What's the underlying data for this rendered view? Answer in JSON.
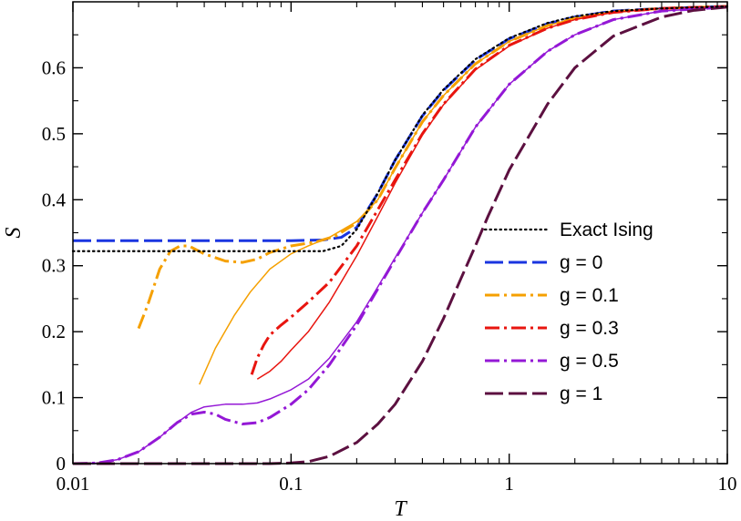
{
  "chart_data": {
    "type": "line",
    "xscale": "log",
    "xlabel": "T",
    "ylabel": "S",
    "xlim": [
      0.01,
      10
    ],
    "ylim": [
      0,
      0.7
    ],
    "xticks": [
      {
        "value": 0.01,
        "label": "0.01"
      },
      {
        "value": 0.1,
        "label": "0.1"
      },
      {
        "value": 1,
        "label": "1"
      },
      {
        "value": 10,
        "label": "10"
      }
    ],
    "yticks": [
      {
        "value": 0,
        "label": "0"
      },
      {
        "value": 0.1,
        "label": "0.1"
      },
      {
        "value": 0.2,
        "label": "0.2"
      },
      {
        "value": 0.3,
        "label": "0.3"
      },
      {
        "value": 0.4,
        "label": "0.4"
      },
      {
        "value": 0.5,
        "label": "0.5"
      },
      {
        "value": 0.6,
        "label": "0.6"
      }
    ],
    "legend_position": "center-right",
    "series": [
      {
        "name": "Exact Ising",
        "color": "#000000",
        "style": "dotted",
        "legend": true,
        "points": [
          [
            0.01,
            0.322
          ],
          [
            0.14,
            0.322
          ],
          [
            0.17,
            0.33
          ],
          [
            0.2,
            0.355
          ],
          [
            0.25,
            0.41
          ],
          [
            0.3,
            0.46
          ],
          [
            0.4,
            0.528
          ],
          [
            0.5,
            0.567
          ],
          [
            0.7,
            0.613
          ],
          [
            1,
            0.645
          ],
          [
            1.5,
            0.668
          ],
          [
            2,
            0.678
          ],
          [
            3,
            0.686
          ],
          [
            5,
            0.69
          ],
          [
            10,
            0.693
          ]
        ]
      },
      {
        "name": "g = 0",
        "color": "#1a35e0",
        "style": "long-dash",
        "legend": true,
        "points": [
          [
            0.01,
            0.338
          ],
          [
            0.1,
            0.338
          ],
          [
            0.14,
            0.339
          ],
          [
            0.17,
            0.343
          ],
          [
            0.2,
            0.358
          ],
          [
            0.25,
            0.41
          ],
          [
            0.3,
            0.46
          ],
          [
            0.4,
            0.527
          ],
          [
            0.5,
            0.566
          ],
          [
            0.7,
            0.612
          ],
          [
            1,
            0.644
          ],
          [
            1.5,
            0.667
          ],
          [
            2,
            0.677
          ],
          [
            3,
            0.686
          ],
          [
            5,
            0.69
          ],
          [
            10,
            0.693
          ]
        ]
      },
      {
        "name": "g = 0.1",
        "color": "#f5a000",
        "style": "dash-dot",
        "legend": true,
        "points": [
          [
            0.02,
            0.205
          ],
          [
            0.022,
            0.24
          ],
          [
            0.025,
            0.295
          ],
          [
            0.028,
            0.322
          ],
          [
            0.031,
            0.33
          ],
          [
            0.034,
            0.33
          ],
          [
            0.04,
            0.318
          ],
          [
            0.05,
            0.307
          ],
          [
            0.06,
            0.305
          ],
          [
            0.07,
            0.31
          ],
          [
            0.08,
            0.32
          ],
          [
            0.1,
            0.33
          ],
          [
            0.13,
            0.336
          ],
          [
            0.16,
            0.345
          ],
          [
            0.2,
            0.365
          ],
          [
            0.25,
            0.4
          ],
          [
            0.3,
            0.448
          ],
          [
            0.4,
            0.518
          ],
          [
            0.5,
            0.558
          ],
          [
            0.7,
            0.606
          ],
          [
            1,
            0.64
          ],
          [
            1.5,
            0.664
          ],
          [
            2,
            0.675
          ],
          [
            3,
            0.685
          ],
          [
            5,
            0.69
          ],
          [
            10,
            0.693
          ]
        ]
      },
      {
        "name": "g = 0.1 (thin)",
        "color": "#f5a000",
        "style": "solid",
        "legend": false,
        "points": [
          [
            0.038,
            0.12
          ],
          [
            0.045,
            0.175
          ],
          [
            0.055,
            0.225
          ],
          [
            0.065,
            0.26
          ],
          [
            0.08,
            0.295
          ],
          [
            0.1,
            0.318
          ],
          [
            0.12,
            0.33
          ],
          [
            0.15,
            0.343
          ],
          [
            0.2,
            0.367
          ],
          [
            0.25,
            0.4
          ],
          [
            0.3,
            0.448
          ],
          [
            0.4,
            0.518
          ],
          [
            0.5,
            0.558
          ],
          [
            0.7,
            0.606
          ],
          [
            1,
            0.64
          ],
          [
            1.5,
            0.664
          ],
          [
            2,
            0.675
          ],
          [
            3,
            0.685
          ],
          [
            5,
            0.69
          ],
          [
            10,
            0.693
          ]
        ]
      },
      {
        "name": "g = 0.3",
        "color": "#e8150f",
        "style": "dash-dot",
        "legend": true,
        "points": [
          [
            0.066,
            0.135
          ],
          [
            0.07,
            0.16
          ],
          [
            0.075,
            0.18
          ],
          [
            0.08,
            0.195
          ],
          [
            0.09,
            0.21
          ],
          [
            0.1,
            0.222
          ],
          [
            0.12,
            0.245
          ],
          [
            0.15,
            0.275
          ],
          [
            0.2,
            0.33
          ],
          [
            0.25,
            0.385
          ],
          [
            0.3,
            0.43
          ],
          [
            0.4,
            0.5
          ],
          [
            0.5,
            0.545
          ],
          [
            0.7,
            0.598
          ],
          [
            1,
            0.634
          ],
          [
            1.5,
            0.66
          ],
          [
            2,
            0.673
          ],
          [
            3,
            0.684
          ],
          [
            5,
            0.69
          ],
          [
            10,
            0.693
          ]
        ]
      },
      {
        "name": "g = 0.3 (thin)",
        "color": "#e8150f",
        "style": "solid",
        "legend": false,
        "points": [
          [
            0.07,
            0.128
          ],
          [
            0.08,
            0.14
          ],
          [
            0.09,
            0.155
          ],
          [
            0.1,
            0.172
          ],
          [
            0.12,
            0.2
          ],
          [
            0.15,
            0.245
          ],
          [
            0.2,
            0.315
          ],
          [
            0.25,
            0.375
          ],
          [
            0.3,
            0.425
          ],
          [
            0.4,
            0.498
          ],
          [
            0.5,
            0.544
          ],
          [
            0.7,
            0.597
          ],
          [
            1,
            0.633
          ],
          [
            1.5,
            0.66
          ],
          [
            2,
            0.673
          ],
          [
            3,
            0.684
          ],
          [
            5,
            0.69
          ],
          [
            10,
            0.693
          ]
        ]
      },
      {
        "name": "g = 0.5",
        "color": "#9418d6",
        "style": "dash-dot",
        "legend": true,
        "points": [
          [
            0.01,
            0
          ],
          [
            0.013,
            0.001
          ],
          [
            0.016,
            0.006
          ],
          [
            0.02,
            0.018
          ],
          [
            0.025,
            0.04
          ],
          [
            0.03,
            0.062
          ],
          [
            0.035,
            0.075
          ],
          [
            0.04,
            0.078
          ],
          [
            0.045,
            0.075
          ],
          [
            0.05,
            0.067
          ],
          [
            0.06,
            0.06
          ],
          [
            0.07,
            0.062
          ],
          [
            0.08,
            0.07
          ],
          [
            0.1,
            0.09
          ],
          [
            0.12,
            0.112
          ],
          [
            0.15,
            0.15
          ],
          [
            0.2,
            0.21
          ],
          [
            0.25,
            0.265
          ],
          [
            0.3,
            0.31
          ],
          [
            0.4,
            0.38
          ],
          [
            0.5,
            0.43
          ],
          [
            0.7,
            0.51
          ],
          [
            1,
            0.575
          ],
          [
            1.5,
            0.625
          ],
          [
            2,
            0.65
          ],
          [
            3,
            0.673
          ],
          [
            5,
            0.686
          ],
          [
            10,
            0.692
          ]
        ]
      },
      {
        "name": "g = 0.5 (thin)",
        "color": "#9418d6",
        "style": "solid",
        "legend": false,
        "points": [
          [
            0.01,
            0
          ],
          [
            0.013,
            0.001
          ],
          [
            0.016,
            0.006
          ],
          [
            0.02,
            0.018
          ],
          [
            0.025,
            0.04
          ],
          [
            0.03,
            0.062
          ],
          [
            0.035,
            0.078
          ],
          [
            0.04,
            0.086
          ],
          [
            0.05,
            0.09
          ],
          [
            0.06,
            0.09
          ],
          [
            0.07,
            0.092
          ],
          [
            0.08,
            0.098
          ],
          [
            0.1,
            0.112
          ],
          [
            0.12,
            0.128
          ],
          [
            0.15,
            0.16
          ],
          [
            0.2,
            0.215
          ],
          [
            0.25,
            0.268
          ],
          [
            0.3,
            0.312
          ],
          [
            0.4,
            0.38
          ],
          [
            0.5,
            0.43
          ],
          [
            0.7,
            0.51
          ],
          [
            1,
            0.575
          ],
          [
            1.5,
            0.625
          ],
          [
            2,
            0.65
          ],
          [
            3,
            0.673
          ],
          [
            5,
            0.686
          ],
          [
            10,
            0.692
          ]
        ]
      },
      {
        "name": "g = 1",
        "color": "#5c1040",
        "style": "long-dash",
        "legend": true,
        "points": [
          [
            0.01,
            0
          ],
          [
            0.08,
            0
          ],
          [
            0.1,
            0.001
          ],
          [
            0.12,
            0.003
          ],
          [
            0.15,
            0.011
          ],
          [
            0.2,
            0.032
          ],
          [
            0.25,
            0.06
          ],
          [
            0.3,
            0.09
          ],
          [
            0.4,
            0.155
          ],
          [
            0.5,
            0.22
          ],
          [
            0.6,
            0.28
          ],
          [
            0.7,
            0.33
          ],
          [
            0.8,
            0.375
          ],
          [
            1,
            0.445
          ],
          [
            1.5,
            0.545
          ],
          [
            2,
            0.6
          ],
          [
            3,
            0.648
          ],
          [
            5,
            0.677
          ],
          [
            7,
            0.687
          ],
          [
            10,
            0.692
          ]
        ]
      }
    ]
  }
}
